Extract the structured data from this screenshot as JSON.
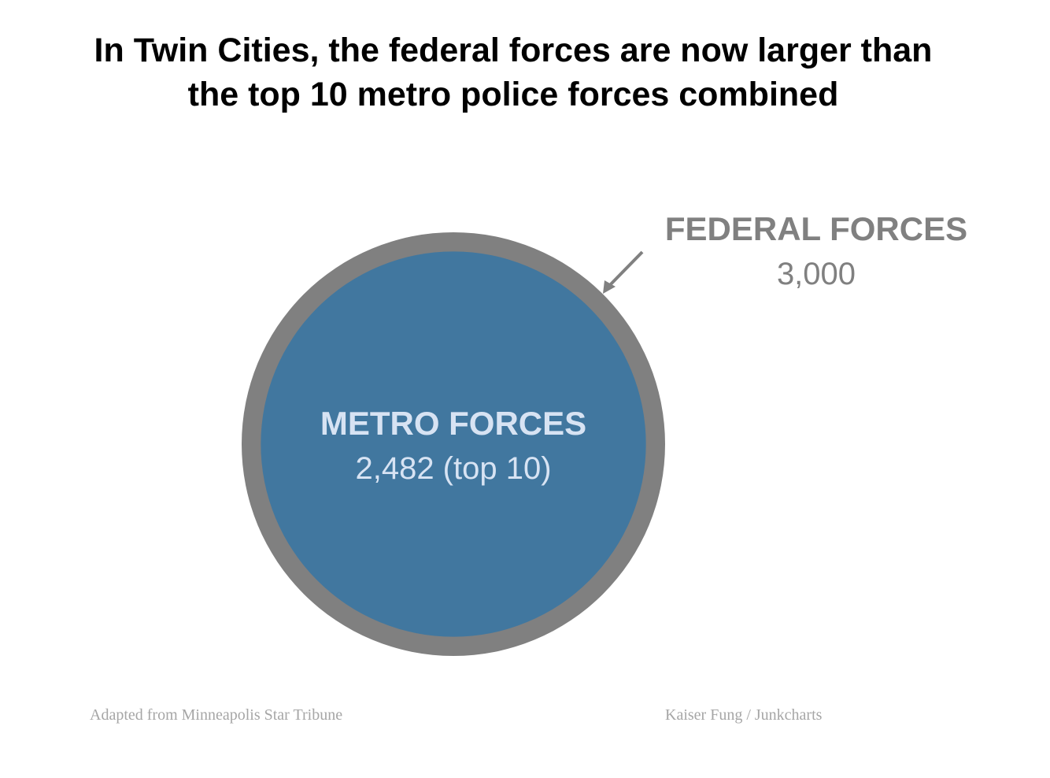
{
  "title": {
    "line1": "In Twin Cities, the federal forces are now larger than",
    "line2": "the top 10 metro police forces combined"
  },
  "chart_data": {
    "type": "nested-circle",
    "series": [
      {
        "name": "FEDERAL FORCES",
        "value": 3000,
        "value_label": "3,000",
        "color": "#808080",
        "label_color": "#808080"
      },
      {
        "name": "METRO FORCES",
        "value": 2482,
        "value_label": "2,482 (top 10)",
        "color": "#41779f",
        "label_color": "#d7e3f3"
      }
    ]
  },
  "footer": {
    "source": "Adapted from Minneapolis Star Tribune",
    "credit": "Kaiser Fung / Junkcharts"
  }
}
